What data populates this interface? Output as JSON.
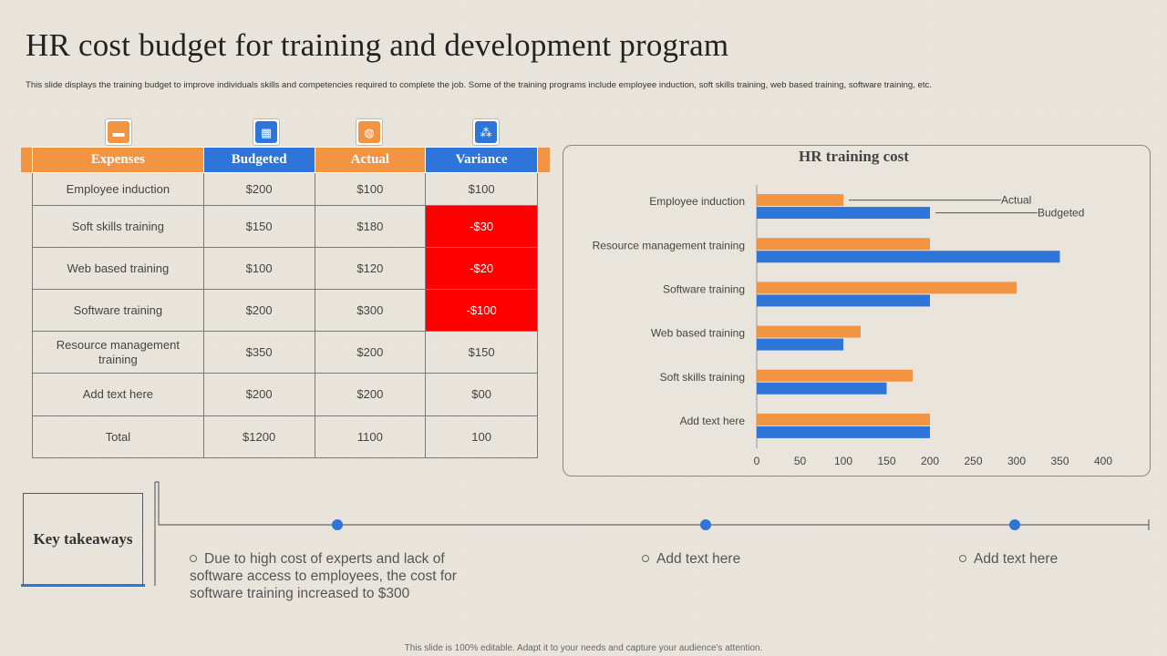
{
  "title": "HR cost budget for training and development program",
  "subtitle": "This slide displays the training budget to improve individuals skills and competencies required to complete the job. Some of the training programs include employee induction, soft skills training,  web based training, software training, etc.",
  "table": {
    "headers": [
      "Expenses",
      "Budgeted",
      "Actual",
      "Variance"
    ],
    "header_colors": [
      "#f39443",
      "#2e75d9",
      "#f39443",
      "#2e75d9"
    ],
    "rows": [
      {
        "expense": "Employee induction",
        "budgeted": "$200",
        "actual": "$100",
        "variance": "$100",
        "negative": false
      },
      {
        "expense": "Soft skills training",
        "budgeted": "$150",
        "actual": "$180",
        "variance": "-$30",
        "negative": true
      },
      {
        "expense": "Web based training",
        "budgeted": "$100",
        "actual": "$120",
        "variance": "-$20",
        "negative": true
      },
      {
        "expense": "Software  training",
        "budgeted": "$200",
        "actual": "$300",
        "variance": "-$100",
        "negative": true
      },
      {
        "expense": "Resource management training",
        "budgeted": "$350",
        "actual": "$200",
        "variance": "$150",
        "negative": false
      },
      {
        "expense": "Add text here",
        "budgeted": "$200",
        "actual": "$200",
        "variance": "$00",
        "negative": false
      },
      {
        "expense": "Total",
        "budgeted": "$1200",
        "actual": "1100",
        "variance": "100",
        "negative": false
      }
    ]
  },
  "icons": [
    {
      "name": "money-icon",
      "glyph": "▬",
      "color": "#f39443"
    },
    {
      "name": "calculator-icon",
      "glyph": "▦",
      "color": "#2e75d9"
    },
    {
      "name": "coin-icon",
      "glyph": "◍",
      "color": "#f39443"
    },
    {
      "name": "network-icon",
      "glyph": "⁂",
      "color": "#2e75d9"
    }
  ],
  "colors": {
    "orange": "#f39443",
    "blue": "#2e75d9",
    "negative": "#ff0000"
  },
  "chart_data": {
    "type": "bar",
    "orientation": "horizontal",
    "title": "HR training cost",
    "categories": [
      "Employee induction",
      "Resource management training",
      "Software training",
      "Web based training",
      "Soft skills training",
      "Add text here"
    ],
    "series": [
      {
        "name": "Actual",
        "color": "#f39443",
        "values": [
          100,
          200,
          300,
          120,
          180,
          200
        ]
      },
      {
        "name": "Budgeted",
        "color": "#2e75d9",
        "values": [
          200,
          350,
          200,
          100,
          150,
          200
        ]
      }
    ],
    "xlim": [
      0,
      400
    ],
    "xticks": [
      0,
      50,
      100,
      150,
      200,
      250,
      300,
      350,
      400
    ],
    "legend": "callout-labels"
  },
  "takeaways": {
    "label": "Key takeaways",
    "items": [
      "Due to high cost of experts and lack of software access to employees, the cost for software training increased to $300",
      "Add text here",
      "Add text here"
    ]
  },
  "footer": "This slide is 100% editable.  Adapt it to your needs and capture your audience's attention."
}
